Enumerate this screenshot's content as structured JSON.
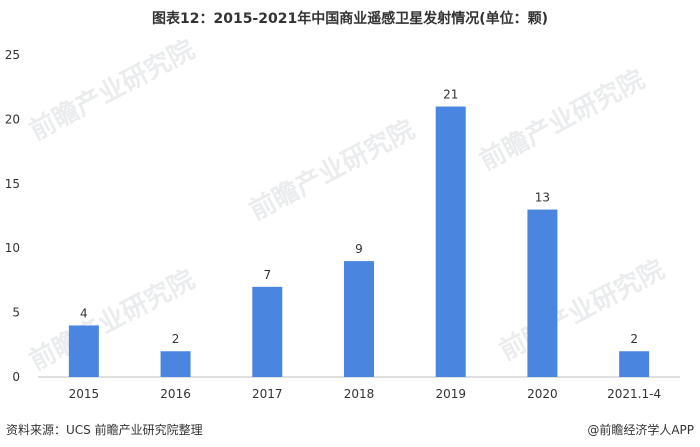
{
  "chart_data": {
    "type": "bar",
    "title": "图表12：2015-2021年中国商业遥感卫星发射情况(单位：颗)",
    "categories": [
      "2015",
      "2016",
      "2017",
      "2018",
      "2019",
      "2020",
      "2021.1-4"
    ],
    "values": [
      4,
      2,
      7,
      9,
      21,
      13,
      2
    ],
    "xlabel": "",
    "ylabel": "",
    "ylim": [
      0,
      25
    ],
    "yticks": [
      0,
      5,
      10,
      15,
      20,
      25
    ],
    "grid": false,
    "legend": "none",
    "bar_color": "#4a86e0"
  },
  "footer": {
    "source": "资料来源：UCS 前瞻产业研究院整理",
    "brand": "@前瞻经济学人APP"
  },
  "watermark": "前瞻产业研究院"
}
